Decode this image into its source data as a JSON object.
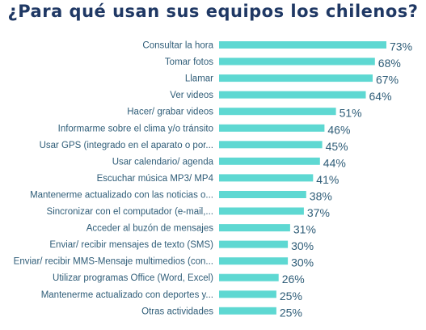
{
  "chart_data": {
    "type": "bar",
    "orientation": "horizontal",
    "title": "¿Para qué usan sus equipos los chilenos?",
    "value_suffix": "%",
    "bar_color": "#5ed8d2",
    "text_color": "#2f5d78",
    "title_color": "#1f3864",
    "grid": false,
    "xlim": [
      0,
      73
    ],
    "categories": [
      "Consultar la hora",
      "Tomar fotos",
      "Llamar",
      "Ver videos",
      "Hacer/ grabar videos",
      "Informarme sobre el clima y/o tránsito",
      "Usar GPS (integrado en el aparato o por...",
      "Usar calendario/ agenda",
      "Escuchar música MP3/ MP4",
      "Mantenerme actualizado con las noticias o...",
      "Sincronizar con el computador (e-mail,...",
      "Acceder al buzón de mensajes",
      "Enviar/ recibir mensajes de texto (SMS)",
      "Enviar/ recibir MMS-Mensaje multimedios (con...",
      "Utilizar programas Office (Word, Excel)",
      "Mantenerme actualizado con deportes y...",
      "Otras actividades"
    ],
    "values": [
      73,
      68,
      67,
      64,
      51,
      46,
      45,
      44,
      41,
      38,
      37,
      31,
      30,
      30,
      26,
      25,
      25
    ]
  }
}
